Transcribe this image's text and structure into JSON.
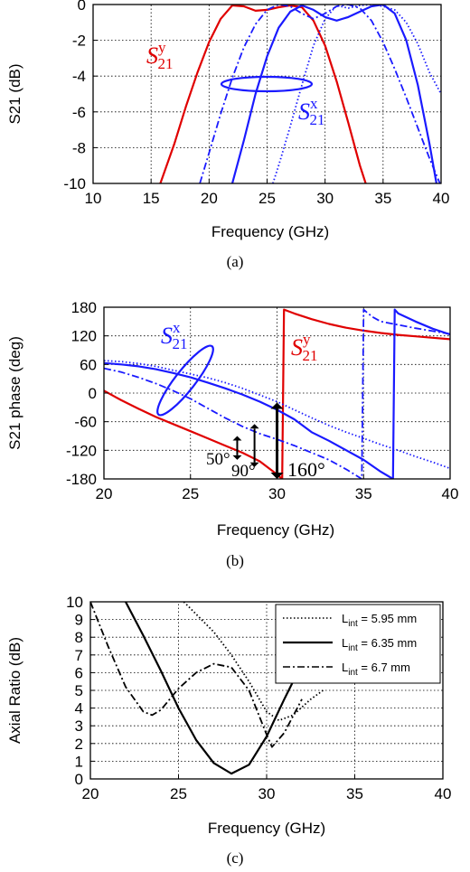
{
  "chart_data": [
    {
      "type": "line",
      "panel": "a",
      "caption": "(a)",
      "xlabel": "Frequency (GHz)",
      "ylabel": "S21 (dB)",
      "xlim": [
        10,
        40
      ],
      "ylim": [
        -10,
        0
      ],
      "xticks": [
        "10",
        "15",
        "20",
        "25",
        "30",
        "35",
        "40"
      ],
      "yticks": [
        "0",
        "-2",
        "-4",
        "-6",
        "-8",
        "-10"
      ],
      "grid": true,
      "series": [
        {
          "group": "y",
          "color": "#e00000",
          "style": "solid",
          "x": [
            15.8,
            17,
            18,
            19,
            20,
            21,
            22,
            23,
            24,
            25,
            26,
            27,
            28,
            29,
            30,
            31,
            32,
            33,
            33.5
          ],
          "y": [
            -10,
            -7.8,
            -5.7,
            -3.8,
            -2.1,
            -0.8,
            -0.05,
            -0.1,
            -0.35,
            -0.3,
            -0.15,
            -0.05,
            -0.15,
            -0.9,
            -2.3,
            -4.3,
            -6.6,
            -9.0,
            -10
          ]
        },
        {
          "group": "x",
          "color": "#1a1aff",
          "style": "solid",
          "x": [
            22,
            23,
            24,
            25,
            26,
            27,
            28,
            29,
            30,
            31,
            32,
            33,
            34,
            35,
            36,
            37,
            38,
            39,
            39.6
          ],
          "y": [
            -10,
            -7.6,
            -5.0,
            -2.9,
            -1.3,
            -0.4,
            -0.05,
            -0.3,
            -0.7,
            -0.9,
            -0.7,
            -0.4,
            -0.1,
            0,
            -0.5,
            -2.0,
            -4.5,
            -7.8,
            -10
          ]
        },
        {
          "group": "x",
          "color": "#1a1aff",
          "style": "dashdot",
          "x": [
            19.2,
            20,
            21,
            22,
            23,
            24,
            25,
            26,
            27,
            28,
            29,
            30,
            31,
            32,
            33,
            34,
            35,
            36,
            37,
            38,
            39,
            39.9
          ],
          "y": [
            -10,
            -8.3,
            -6.1,
            -4.1,
            -2.4,
            -1.1,
            -0.3,
            0,
            -0.1,
            -0.5,
            -0.8,
            -0.5,
            -0.1,
            0,
            -0.2,
            -0.9,
            -2.1,
            -3.6,
            -5.2,
            -6.9,
            -8.6,
            -10
          ]
        },
        {
          "group": "x",
          "color": "#1a1aff",
          "style": "dotted",
          "x": [
            25.5,
            26,
            27,
            28,
            29,
            30,
            31,
            32,
            33,
            34,
            35,
            36,
            37,
            38,
            39,
            40
          ],
          "y": [
            -10,
            -9.0,
            -6.8,
            -4.5,
            -2.3,
            -0.8,
            -0.05,
            -0.2,
            -0.05,
            0,
            -0.1,
            -0.3,
            -1.0,
            -2.2,
            -3.8,
            -5.0
          ]
        }
      ],
      "labels": [
        {
          "text": "S",
          "sub": "21",
          "sup": "y",
          "color": "#e00000"
        },
        {
          "text": "S",
          "sub": "21",
          "sup": "x",
          "color": "#1a1aff"
        }
      ]
    },
    {
      "type": "line",
      "panel": "b",
      "caption": "(b)",
      "xlabel": "Frequency (GHz)",
      "ylabel": "S21 phase (deg)",
      "xlim": [
        20,
        40
      ],
      "ylim": [
        -180,
        180
      ],
      "xticks": [
        "20",
        "25",
        "30",
        "35",
        "40"
      ],
      "yticks": [
        "180",
        "120",
        "60",
        "0",
        "-60",
        "-120",
        "-180"
      ],
      "grid": true,
      "series": [
        {
          "group": "y",
          "color": "#e00000",
          "style": "solid",
          "x": [
            20,
            21,
            22,
            23,
            24,
            25,
            26,
            27,
            28,
            29,
            29.8,
            30.3,
            30.4,
            31,
            32,
            33,
            34,
            35,
            36,
            37,
            38,
            39,
            40
          ],
          "y": [
            5,
            -15,
            -33,
            -50,
            -65,
            -80,
            -95,
            -110,
            -125,
            -143,
            -165,
            -180,
            175,
            167,
            155,
            145,
            137,
            131,
            126,
            122,
            119,
            116,
            113
          ]
        },
        {
          "group": "x",
          "color": "#1a1aff",
          "style": "solid",
          "x": [
            20,
            21,
            22,
            23,
            24,
            25,
            26,
            27,
            28,
            29,
            30,
            31,
            32,
            33,
            34,
            35,
            36,
            36.7,
            36.8,
            37,
            38,
            39,
            40
          ],
          "y": [
            63,
            60,
            56,
            50,
            42,
            33,
            22,
            10,
            -3,
            -18,
            -35,
            -55,
            -82,
            -100,
            -120,
            -140,
            -165,
            -180,
            175,
            167,
            150,
            135,
            123
          ]
        },
        {
          "group": "x",
          "color": "#1a1aff",
          "style": "dashdot",
          "x": [
            20,
            21,
            22,
            23,
            24,
            25,
            26,
            27,
            28,
            29,
            30,
            31,
            32,
            33,
            34,
            34.9,
            35.0,
            35.5,
            36,
            37,
            38,
            39,
            40
          ],
          "y": [
            52,
            44,
            33,
            20,
            5,
            -12,
            -32,
            -52,
            -70,
            -85,
            -97,
            -110,
            -125,
            -140,
            -160,
            -180,
            175,
            160,
            150,
            143,
            136,
            130,
            124
          ]
        },
        {
          "group": "x",
          "color": "#1a1aff",
          "style": "dotted",
          "x": [
            20,
            21,
            22,
            23,
            24,
            25,
            26,
            27,
            28,
            29,
            30,
            31,
            32,
            33,
            34,
            35,
            36,
            37,
            38,
            39,
            40
          ],
          "y": [
            68,
            66,
            62,
            56,
            48,
            40,
            32,
            22,
            10,
            -4,
            -18,
            -35,
            -52,
            -68,
            -82,
            -95,
            -108,
            -120,
            -133,
            -145,
            -158
          ]
        }
      ],
      "labels": [
        {
          "text": "S",
          "sub": "21",
          "sup": "x",
          "color": "#1a1aff"
        },
        {
          "text": "S",
          "sub": "21",
          "sup": "y",
          "color": "#e00000"
        }
      ],
      "annotations": [
        {
          "text": "50°",
          "x": 27.7,
          "from": -140,
          "to": -90
        },
        {
          "text": "90°",
          "x": 28.7,
          "from": -155,
          "to": -65
        },
        {
          "text": "160°",
          "x": 30.0,
          "from": -180,
          "to": -20
        }
      ]
    },
    {
      "type": "line",
      "panel": "c",
      "caption": "(c)",
      "xlabel": "Frequency (GHz)",
      "ylabel": "Axial Ratio (dB)",
      "xlim": [
        20,
        40
      ],
      "ylim": [
        0,
        10
      ],
      "xticks": [
        "20",
        "25",
        "30",
        "35",
        "40"
      ],
      "yticks": [
        "0",
        "1",
        "2",
        "3",
        "4",
        "5",
        "6",
        "7",
        "8",
        "9",
        "10"
      ],
      "grid": true,
      "legend_position": "top-right",
      "series": [
        {
          "name_main": "L",
          "name_sub": "int",
          "name_tail": " = 5.95 mm",
          "color": "#000000",
          "style": "dotted",
          "x": [
            25.3,
            26,
            27,
            28,
            29,
            30,
            30.7,
            31.5,
            32.5,
            33.2
          ],
          "y": [
            10,
            9.3,
            8.3,
            7.0,
            5.5,
            3.8,
            3.3,
            3.6,
            4.5,
            5.0
          ]
        },
        {
          "name_main": "L",
          "name_sub": "int",
          "name_tail": " = 6.35 mm",
          "color": "#000000",
          "style": "solid",
          "x": [
            22.0,
            23,
            24,
            25,
            26,
            27,
            28,
            29,
            30,
            31,
            32
          ],
          "y": [
            10,
            8.1,
            6.1,
            4.0,
            2.2,
            0.9,
            0.3,
            0.8,
            2.4,
            4.5,
            6.5
          ]
        },
        {
          "name_main": "L",
          "name_sub": "int",
          "name_tail": " = 6.7 mm",
          "color": "#000000",
          "style": "dashdot",
          "x": [
            20,
            21,
            22,
            23,
            23.5,
            24,
            25,
            26,
            27,
            28,
            29,
            30,
            30.3,
            31,
            32
          ],
          "y": [
            10,
            7.5,
            5.2,
            3.8,
            3.6,
            3.9,
            5.1,
            6.0,
            6.5,
            6.3,
            5.0,
            2.5,
            1.8,
            2.6,
            4.5
          ]
        }
      ]
    }
  ]
}
